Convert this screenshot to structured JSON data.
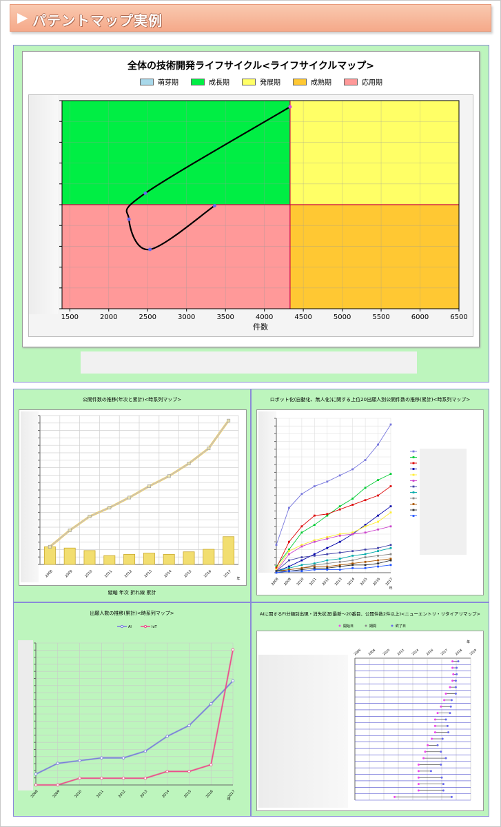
{
  "header": {
    "arrow": "▶",
    "title": "パテントマップ実例"
  },
  "lifecycle": {
    "title": "全体の技術開発ライフサイクル<ライフサイクルマップ>",
    "legend": [
      {
        "label": "萌芽期",
        "color": "#a8d8ea"
      },
      {
        "label": "成長期",
        "color": "#00ee44"
      },
      {
        "label": "発展期",
        "color": "#ffff66"
      },
      {
        "label": "成熟期",
        "color": "#ffc833"
      },
      {
        "label": "応用期",
        "color": "#ff9999"
      }
    ],
    "xlabel": "件数"
  },
  "chart_data": [
    {
      "type": "line",
      "title": "全体の技術開発ライフサイクル<ライフサイクルマップ>",
      "xlabel": "件数",
      "xlim": [
        1400,
        6500
      ],
      "xticks": [
        1500,
        2000,
        2500,
        3000,
        3500,
        4000,
        4500,
        5000,
        5500,
        6000,
        6500
      ],
      "x_divider": 4330,
      "quadrants": {
        "top_left": "成長期",
        "top_right": "発展期",
        "bottom_left": "応用期",
        "bottom_right": "成熟期"
      },
      "series": [
        {
          "points": [
            {
              "x": 3360,
              "y": -0.05
            },
            {
              "x": 2530,
              "y": -2.15
            },
            {
              "x": 2260,
              "y": -0.7
            },
            {
              "x": 2470,
              "y": 0.55
            },
            {
              "x": 4330,
              "y": 4.7
            }
          ]
        }
      ]
    },
    {
      "type": "bar",
      "title": "公開件数の推移(年次と累計)<時系列マップ>",
      "categories": [
        "2008",
        "2009",
        "2010",
        "2011",
        "2012",
        "2013",
        "2014",
        "2015",
        "2016",
        "2017"
      ],
      "xlabel": "年",
      "values": [
        14,
        13,
        11,
        7,
        8,
        9,
        8,
        10,
        12,
        22
      ],
      "cumulative": [
        14,
        27,
        38,
        45,
        53,
        62,
        70,
        80,
        92,
        114
      ],
      "note": "縦軸 年次 折れ線 累計"
    },
    {
      "type": "line",
      "title": "ロボット化(自動化、無人化)に関する上位20出願人別公開件数の推移(累計)<時系列マップ>",
      "categories": [
        "2008",
        "2009",
        "2010",
        "2011",
        "2012",
        "2013",
        "2014",
        "2015",
        "2016",
        "2017"
      ],
      "xlabel": "年",
      "ylim": [
        0,
        100
      ],
      "series": [
        {
          "color": "#7777dd",
          "values": [
            18,
            42,
            51,
            56,
            59,
            63,
            67,
            73,
            83,
            96
          ]
        },
        {
          "color": "#00cc33",
          "values": [
            4,
            15,
            26,
            31,
            37,
            43,
            48,
            55,
            60,
            64
          ]
        },
        {
          "color": "#dd0000",
          "values": [
            3,
            20,
            30,
            37,
            38,
            41,
            44,
            47,
            50,
            56
          ]
        },
        {
          "color": "#0000aa",
          "values": [
            1,
            4,
            8,
            12,
            16,
            20,
            25,
            31,
            37,
            43
          ]
        },
        {
          "color": "#ffee33",
          "values": [
            2,
            14,
            18,
            21,
            23,
            25,
            26,
            30,
            33,
            39
          ]
        },
        {
          "color": "#cc44cc",
          "values": [
            1,
            12,
            17,
            20,
            22,
            24,
            25,
            26,
            28,
            30
          ]
        },
        {
          "color": "#4444aa",
          "values": [
            1,
            8,
            10,
            11,
            12,
            13,
            14,
            15,
            16,
            18
          ]
        },
        {
          "color": "#00aaaa",
          "values": [
            1,
            3,
            5,
            6,
            8,
            9,
            11,
            12,
            14,
            16
          ]
        },
        {
          "color": "#888888",
          "values": [
            1,
            2,
            3,
            5,
            6,
            7,
            8,
            10,
            11,
            12
          ]
        },
        {
          "color": "#aa5500",
          "values": [
            1,
            2,
            3,
            4,
            4,
            5,
            6,
            7,
            8,
            9
          ]
        },
        {
          "color": "#333333",
          "values": [
            1,
            1,
            2,
            3,
            3,
            4,
            5,
            5,
            6,
            8
          ]
        },
        {
          "color": "#2255ff",
          "values": [
            0,
            1,
            1,
            2,
            2,
            2,
            3,
            3,
            4,
            5
          ]
        }
      ]
    },
    {
      "type": "line",
      "title": "出願人数の推移(累計)<時系列マップ>",
      "categories": [
        "2008",
        "2009",
        "2010",
        "2011",
        "2012",
        "2013",
        "2014",
        "2015",
        "2016",
        "2017"
      ],
      "xlabel": "年",
      "series": [
        {
          "name": "AI",
          "color": "#7777dd",
          "values": [
            8,
            16,
            18,
            20,
            20,
            25,
            36,
            44,
            60,
            77
          ]
        },
        {
          "name": "IoT",
          "color": "#ee4488",
          "values": [
            0,
            0,
            5,
            5,
            5,
            5,
            10,
            10,
            15,
            100
          ]
        }
      ]
    },
    {
      "type": "scatter",
      "title": "AIに関するFI分類別出現・消失状況(最新～20番目、公開件数2件以上)<ニューエントリ・リタイアリマップ>",
      "legend": [
        "開始日",
        "期間",
        "終了日"
      ],
      "xlabel": "年",
      "xticks": [
        "2006",
        "2008",
        "2010",
        "2012",
        "2014",
        "2016",
        "2017",
        "2018",
        "2019"
      ],
      "xlim": [
        2005,
        2019
      ],
      "rows": [
        {
          "start": 2016.8,
          "end": 2017.5
        },
        {
          "start": 2016.8,
          "end": 2017.3
        },
        {
          "start": 2016.9,
          "end": 2017.3
        },
        {
          "start": 2016.8,
          "end": 2017.2
        },
        {
          "start": 2016.5,
          "end": 2017.2
        },
        {
          "start": 2016.0,
          "end": 2017.2
        },
        {
          "start": 2015.8,
          "end": 2016.7
        },
        {
          "start": 2015.4,
          "end": 2016.6
        },
        {
          "start": 2015.0,
          "end": 2016.5
        },
        {
          "start": 2014.7,
          "end": 2016.0
        },
        {
          "start": 2014.7,
          "end": 2016.2
        },
        {
          "start": 2014.7,
          "end": 2016.3
        },
        {
          "start": 2014.3,
          "end": 2015.6
        },
        {
          "start": 2013.8,
          "end": 2015.0
        },
        {
          "start": 2013.5,
          "end": 2015.4
        },
        {
          "start": 2013.3,
          "end": 2016.0
        },
        {
          "start": 2012.7,
          "end": 2015.4
        },
        {
          "start": 2012.7,
          "end": 2014.2
        },
        {
          "start": 2012.7,
          "end": 2015.5
        },
        {
          "start": 2012.7,
          "end": 2015.7
        },
        {
          "start": 2012.7,
          "end": 2015.7
        },
        {
          "start": 2009.8,
          "end": 2016.7
        }
      ]
    }
  ],
  "panels": {
    "bar": {
      "title": "公開件数の推移(年次と累計)<時系列マップ>",
      "note": "縦軸 年次 折れ線 累計"
    },
    "robot": {
      "title": "ロボット化(自動化、無人化)に関する上位20出願人別公開件数の推移(累計)<時系列マップ>"
    },
    "applicants": {
      "title": "出願人数の推移(累計)<時系列マップ>"
    },
    "entry": {
      "title": "AIに関するFI分類別出現・消失状況(最新～20番目、公開件数2件以上)<ニューエントリ・リタイアリマップ>"
    }
  }
}
